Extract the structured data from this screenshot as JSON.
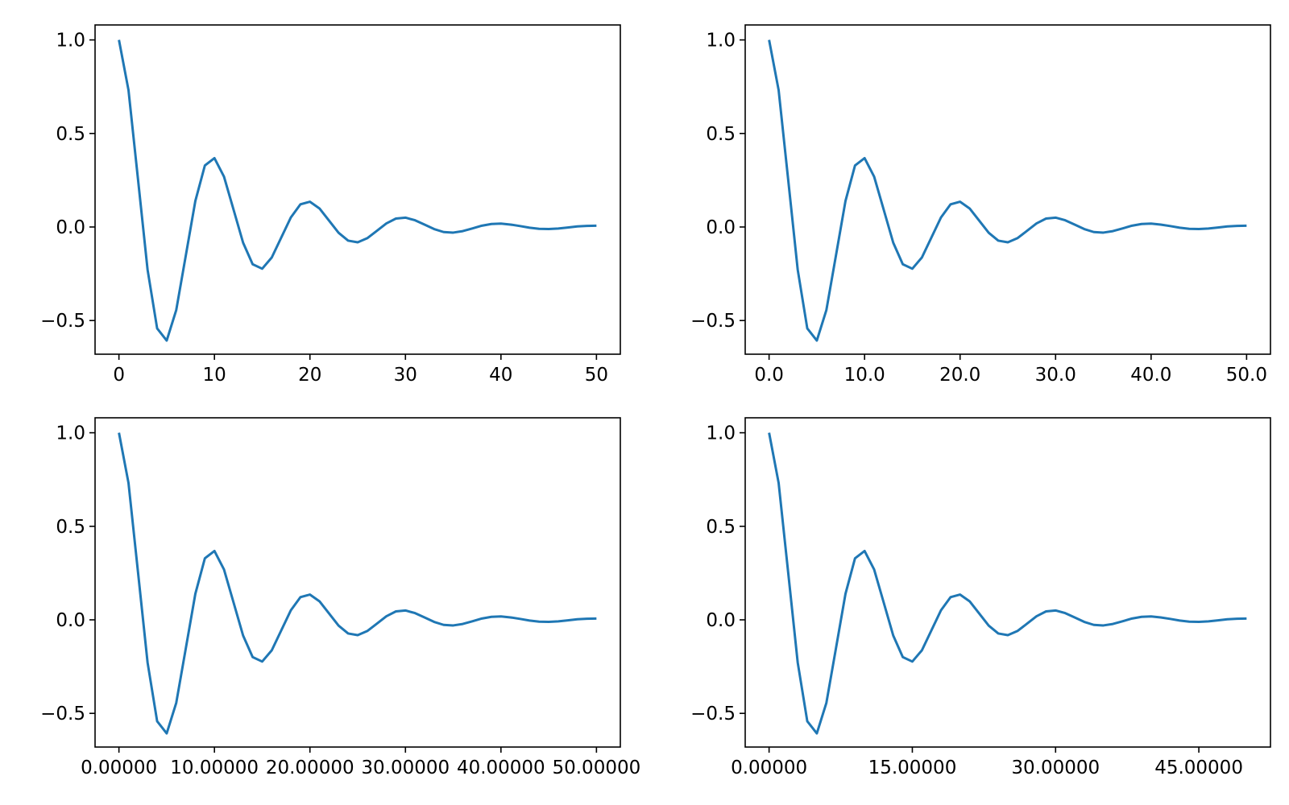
{
  "chart_data": [
    {
      "type": "line",
      "color": "#1f77b4",
      "x": [
        0,
        1,
        2,
        3,
        4,
        5,
        6,
        7,
        8,
        9,
        10,
        11,
        12,
        13,
        14,
        15,
        16,
        17,
        18,
        19,
        20,
        21,
        22,
        23,
        24,
        25,
        26,
        27,
        28,
        29,
        30,
        31,
        32,
        33,
        34,
        35,
        36,
        37,
        38,
        39,
        40,
        41,
        42,
        43,
        44,
        45,
        46,
        47,
        48,
        49,
        50
      ],
      "values": [
        1,
        0.732,
        0.253,
        -0.229,
        -0.542,
        -0.607,
        -0.444,
        -0.153,
        0.139,
        0.329,
        0.368,
        0.269,
        0.093,
        -0.084,
        -0.199,
        -0.223,
        -0.163,
        -0.056,
        0.051,
        0.121,
        0.135,
        0.099,
        0.034,
        -0.031,
        -0.073,
        -0.082,
        -0.06,
        -0.021,
        0.019,
        0.045,
        0.05,
        0.036,
        0.013,
        -0.011,
        -0.027,
        -0.03,
        -0.022,
        -0.008,
        0.007,
        0.016,
        0.018,
        0.013,
        0.005,
        -0.004,
        -0.01,
        -0.011,
        -0.008,
        -0.003,
        0.003,
        0.006,
        0.007
      ],
      "xlim": [
        -2.5,
        52.5
      ],
      "ylim": [
        -0.68,
        1.08
      ],
      "xticks": [
        0,
        10,
        20,
        30,
        40,
        50
      ],
      "yticks": [
        {
          "value": -0.5,
          "label": "−0.5"
        },
        {
          "value": 0,
          "label": "0.0"
        },
        {
          "value": 0.5,
          "label": "0.5"
        },
        {
          "value": 1,
          "label": "1.0"
        }
      ]
    },
    {
      "type": "line",
      "color": "#1f77b4",
      "x": [
        0,
        1,
        2,
        3,
        4,
        5,
        6,
        7,
        8,
        9,
        10,
        11,
        12,
        13,
        14,
        15,
        16,
        17,
        18,
        19,
        20,
        21,
        22,
        23,
        24,
        25,
        26,
        27,
        28,
        29,
        30,
        31,
        32,
        33,
        34,
        35,
        36,
        37,
        38,
        39,
        40,
        41,
        42,
        43,
        44,
        45,
        46,
        47,
        48,
        49,
        50
      ],
      "values": [
        1,
        0.732,
        0.253,
        -0.229,
        -0.542,
        -0.607,
        -0.444,
        -0.153,
        0.139,
        0.329,
        0.368,
        0.269,
        0.093,
        -0.084,
        -0.199,
        -0.223,
        -0.163,
        -0.056,
        0.051,
        0.121,
        0.135,
        0.099,
        0.034,
        -0.031,
        -0.073,
        -0.082,
        -0.06,
        -0.021,
        0.019,
        0.045,
        0.05,
        0.036,
        0.013,
        -0.011,
        -0.027,
        -0.03,
        -0.022,
        -0.008,
        0.007,
        0.016,
        0.018,
        0.013,
        0.005,
        -0.004,
        -0.01,
        -0.011,
        -0.008,
        -0.003,
        0.003,
        0.006,
        0.007
      ],
      "xlim": [
        -2.5,
        52.5
      ],
      "ylim": [
        -0.68,
        1.08
      ],
      "xticks": [
        {
          "value": 0,
          "label": "0.0"
        },
        {
          "value": 10,
          "label": "10.0"
        },
        {
          "value": 20,
          "label": "20.0"
        },
        {
          "value": 30,
          "label": "30.0"
        },
        {
          "value": 40,
          "label": "40.0"
        },
        {
          "value": 50,
          "label": "50.0"
        }
      ],
      "yticks": [
        {
          "value": -0.5,
          "label": "−0.5"
        },
        {
          "value": 0,
          "label": "0.0"
        },
        {
          "value": 0.5,
          "label": "0.5"
        },
        {
          "value": 1,
          "label": "1.0"
        }
      ]
    },
    {
      "type": "line",
      "color": "#1f77b4",
      "x": [
        0,
        1,
        2,
        3,
        4,
        5,
        6,
        7,
        8,
        9,
        10,
        11,
        12,
        13,
        14,
        15,
        16,
        17,
        18,
        19,
        20,
        21,
        22,
        23,
        24,
        25,
        26,
        27,
        28,
        29,
        30,
        31,
        32,
        33,
        34,
        35,
        36,
        37,
        38,
        39,
        40,
        41,
        42,
        43,
        44,
        45,
        46,
        47,
        48,
        49,
        50
      ],
      "values": [
        1,
        0.732,
        0.253,
        -0.229,
        -0.542,
        -0.607,
        -0.444,
        -0.153,
        0.139,
        0.329,
        0.368,
        0.269,
        0.093,
        -0.084,
        -0.199,
        -0.223,
        -0.163,
        -0.056,
        0.051,
        0.121,
        0.135,
        0.099,
        0.034,
        -0.031,
        -0.073,
        -0.082,
        -0.06,
        -0.021,
        0.019,
        0.045,
        0.05,
        0.036,
        0.013,
        -0.011,
        -0.027,
        -0.03,
        -0.022,
        -0.008,
        0.007,
        0.016,
        0.018,
        0.013,
        0.005,
        -0.004,
        -0.01,
        -0.011,
        -0.008,
        -0.003,
        0.003,
        0.006,
        0.007
      ],
      "xlim": [
        -2.5,
        52.5
      ],
      "ylim": [
        -0.68,
        1.08
      ],
      "xticks": [
        {
          "value": 0,
          "label": "0.00000"
        },
        {
          "value": 10,
          "label": "10.00000"
        },
        {
          "value": 20,
          "label": "20.00000"
        },
        {
          "value": 30,
          "label": "30.00000"
        },
        {
          "value": 40,
          "label": "40.00000"
        },
        {
          "value": 50,
          "label": "50.00000"
        }
      ],
      "yticks": [
        {
          "value": -0.5,
          "label": "−0.5"
        },
        {
          "value": 0,
          "label": "0.0"
        },
        {
          "value": 0.5,
          "label": "0.5"
        },
        {
          "value": 1,
          "label": "1.0"
        }
      ]
    },
    {
      "type": "line",
      "color": "#1f77b4",
      "x": [
        0,
        1,
        2,
        3,
        4,
        5,
        6,
        7,
        8,
        9,
        10,
        11,
        12,
        13,
        14,
        15,
        16,
        17,
        18,
        19,
        20,
        21,
        22,
        23,
        24,
        25,
        26,
        27,
        28,
        29,
        30,
        31,
        32,
        33,
        34,
        35,
        36,
        37,
        38,
        39,
        40,
        41,
        42,
        43,
        44,
        45,
        46,
        47,
        48,
        49,
        50
      ],
      "values": [
        1,
        0.732,
        0.253,
        -0.229,
        -0.542,
        -0.607,
        -0.444,
        -0.153,
        0.139,
        0.329,
        0.368,
        0.269,
        0.093,
        -0.084,
        -0.199,
        -0.223,
        -0.163,
        -0.056,
        0.051,
        0.121,
        0.135,
        0.099,
        0.034,
        -0.031,
        -0.073,
        -0.082,
        -0.06,
        -0.021,
        0.019,
        0.045,
        0.05,
        0.036,
        0.013,
        -0.011,
        -0.027,
        -0.03,
        -0.022,
        -0.008,
        0.007,
        0.016,
        0.018,
        0.013,
        0.005,
        -0.004,
        -0.01,
        -0.011,
        -0.008,
        -0.003,
        0.003,
        0.006,
        0.007
      ],
      "xlim": [
        -2.5,
        52.5
      ],
      "ylim": [
        -0.68,
        1.08
      ],
      "xticks": [
        {
          "value": 0,
          "label": "0.00000"
        },
        {
          "value": 15,
          "label": "15.00000"
        },
        {
          "value": 30,
          "label": "30.00000"
        },
        {
          "value": 45,
          "label": "45.00000"
        }
      ],
      "yticks": [
        {
          "value": -0.5,
          "label": "−0.5"
        },
        {
          "value": 0,
          "label": "0.0"
        },
        {
          "value": 0.5,
          "label": "0.5"
        },
        {
          "value": 1,
          "label": "1.0"
        }
      ]
    }
  ]
}
